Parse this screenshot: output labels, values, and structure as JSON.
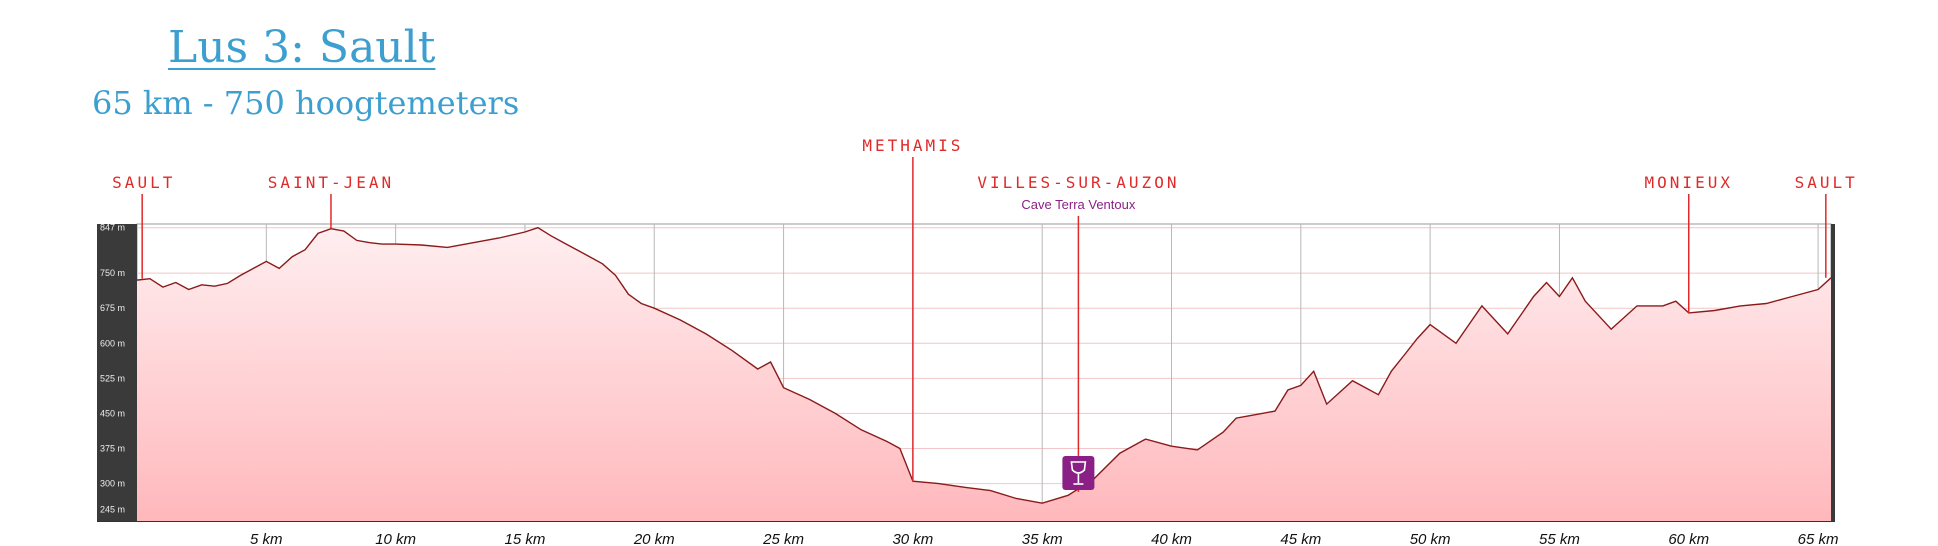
{
  "title": "Lus 3: Sault",
  "subtitle": "65 km - 750 hoogtemeters",
  "colors": {
    "title": "#3d9fcf",
    "place_label": "#e02a2a",
    "poi": "#8a1f86",
    "profile_line": "#8b1a1a",
    "fill_top": "#ffeef0",
    "fill_bottom": "#ffb8bc",
    "axis_panel": "#3a3a3a"
  },
  "chart_data": {
    "type": "area",
    "xlabel": "",
    "ylabel": "",
    "x_unit": "km",
    "y_unit": "m",
    "xlim": [
      0,
      65.5
    ],
    "ylim": [
      220,
      855
    ],
    "grid": true,
    "x_ticks": [
      5,
      10,
      15,
      20,
      25,
      30,
      35,
      40,
      45,
      50,
      55,
      60,
      65
    ],
    "x_tick_labels": [
      "5 km",
      "10 km",
      "15 km",
      "20 km",
      "25 km",
      "30 km",
      "35 km",
      "40 km",
      "45 km",
      "50 km",
      "55 km",
      "60 km",
      "65 km"
    ],
    "y_ticks": [
      245,
      300,
      375,
      450,
      525,
      600,
      675,
      750,
      847
    ],
    "y_tick_labels": [
      "245 m",
      "300 m",
      "375 m",
      "450 m",
      "525 m",
      "600 m",
      "675 m",
      "750 m",
      "847 m"
    ],
    "series": [
      {
        "x": [
          0,
          0.5,
          1,
          1.5,
          2,
          2.5,
          3,
          3.5,
          4,
          4.5,
          5,
          5.5,
          6,
          6.5,
          7,
          7.5,
          8,
          8.5,
          9,
          9.5,
          10,
          11,
          12,
          13,
          14,
          15,
          15.5,
          16,
          16.5,
          17,
          17.5,
          18,
          18.5,
          19,
          19.5,
          20,
          21,
          22,
          23,
          24,
          24.5,
          25,
          26,
          27,
          28,
          29,
          29.5,
          30,
          31,
          32,
          33,
          34,
          35,
          36,
          37,
          38,
          39,
          40,
          41,
          42,
          42.5,
          43,
          44,
          44.5,
          45,
          45.5,
          46,
          47,
          48,
          48.5,
          49,
          49.5,
          50,
          51,
          52,
          53,
          54,
          54.5,
          55,
          55.5,
          56,
          57,
          58,
          59,
          59.5,
          60,
          61,
          62,
          63,
          64,
          65,
          65.5
        ],
        "y": [
          735,
          738,
          720,
          730,
          715,
          725,
          722,
          728,
          745,
          760,
          775,
          760,
          785,
          800,
          835,
          845,
          840,
          820,
          815,
          812,
          812,
          810,
          805,
          815,
          825,
          838,
          847,
          830,
          815,
          800,
          785,
          770,
          745,
          705,
          685,
          675,
          650,
          620,
          585,
          545,
          560,
          505,
          480,
          450,
          415,
          390,
          375,
          305,
          300,
          292,
          285,
          268,
          258,
          275,
          310,
          365,
          395,
          380,
          372,
          410,
          440,
          445,
          455,
          500,
          510,
          540,
          470,
          520,
          490,
          540,
          575,
          610,
          640,
          600,
          680,
          620,
          700,
          730,
          700,
          740,
          690,
          630,
          680,
          680,
          690,
          665,
          670,
          680,
          685,
          700,
          715,
          740
        ]
      }
    ],
    "markers": [
      {
        "label": "SAULT",
        "x": 0.2,
        "y": 738,
        "label_row": 2
      },
      {
        "label": "SAINT-JEAN",
        "x": 7.5,
        "y": 845,
        "label_row": 2
      },
      {
        "label": "METHAMIS",
        "x": 30,
        "y": 305,
        "label_row": 1
      },
      {
        "label": "VILLES-SUR-AUZON",
        "x": 36.4,
        "y": 282,
        "label_row": 2,
        "poi": "Cave Terra Ventoux",
        "icon": "wine-glass-icon"
      },
      {
        "label": "MONIEUX",
        "x": 60,
        "y": 665,
        "label_row": 2
      },
      {
        "label": "SAULT",
        "x": 65.3,
        "y": 740,
        "label_row": 2
      }
    ]
  }
}
